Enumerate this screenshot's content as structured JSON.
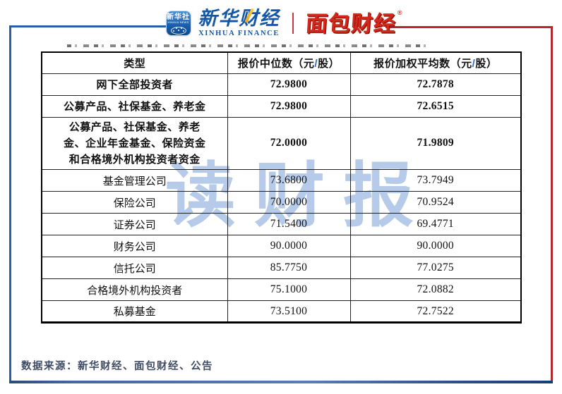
{
  "logos": {
    "xinhua_icon": {
      "line1": "新华社",
      "line2": "XINHUA NEWS"
    },
    "xinhua_finance": {
      "cn": "新华财经",
      "en": "XINHUA FINANCE"
    },
    "mianbao_finance": {
      "cn": "面包财经",
      "reg_mark": "®"
    }
  },
  "watermark": "读财报",
  "chart_data": {
    "type": "table",
    "columns_plain": [
      "类型",
      "报价中位数（元/股）",
      "报价加权平均数（元/股）"
    ],
    "columns": [
      {
        "label": "类型"
      },
      {
        "pre": "报价中位数（元",
        "slash": "/",
        "post": "股）"
      },
      {
        "pre": "报价加权平均数（元",
        "slash": "/",
        "post": "股）"
      }
    ],
    "rows": [
      {
        "type": "网下全部投资者",
        "median": "72.9800",
        "weighted": "72.7878"
      },
      {
        "type": "公募产品、社保基金、养老金",
        "median": "72.9800",
        "weighted": "72.6515"
      },
      {
        "type": "公募产品、社保基金、养老金、企业年金基金、保险资金和合格境外机构投资者资金",
        "median": "72.0000",
        "weighted": "71.9809"
      },
      {
        "type": "基金管理公司",
        "median": "73.6800",
        "weighted": "73.7949"
      },
      {
        "type": "保险公司",
        "median": "70.0000",
        "weighted": "70.9524"
      },
      {
        "type": "证券公司",
        "median": "71.5400",
        "weighted": "69.4771"
      },
      {
        "type": "财务公司",
        "median": "90.0000",
        "weighted": "90.0000"
      },
      {
        "type": "信托公司",
        "median": "85.7750",
        "weighted": "77.0275"
      },
      {
        "type": "合格境外机构投资者",
        "median": "75.1000",
        "weighted": "72.0882"
      },
      {
        "type": "私募基金",
        "median": "73.5100",
        "weighted": "72.7522"
      }
    ],
    "source_note": "数据来源：新华财经、面包财经、公告"
  },
  "colors": {
    "frame_blue": "#2a5ca8",
    "frame_red": "#b7282e",
    "bottom_bar_navy": "#2a4c7c",
    "logo_blue": "#1457a6",
    "logo_red": "#d5281c",
    "watermark_blue": "#b6cbe9",
    "footer_text": "#3f4c66",
    "table_border": "#000000"
  }
}
